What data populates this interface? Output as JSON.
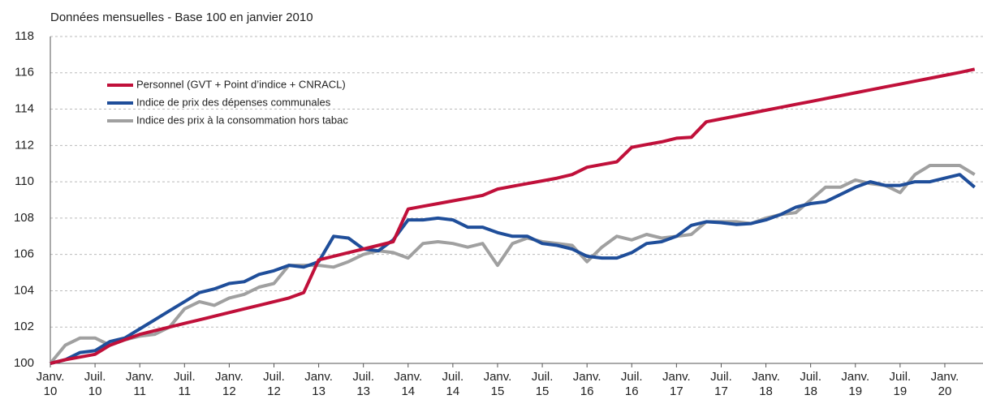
{
  "chart_data": {
    "type": "line",
    "title": "Données mensuelles - Base 100 en janvier 2010",
    "categories": [
      [
        "Janv.",
        "10"
      ],
      null,
      null,
      [
        "Juil.",
        "10"
      ],
      null,
      null,
      [
        "Janv.",
        "11"
      ],
      null,
      null,
      [
        "Juil.",
        "11"
      ],
      null,
      null,
      [
        "Janv.",
        "12"
      ],
      null,
      null,
      [
        "Juil.",
        "12"
      ],
      null,
      null,
      [
        "Janv.",
        "13"
      ],
      null,
      null,
      [
        "Juil.",
        "13"
      ],
      null,
      null,
      [
        "Janv.",
        "14"
      ],
      null,
      null,
      [
        "Juil.",
        "14"
      ],
      null,
      null,
      [
        "Janv.",
        "15"
      ],
      null,
      null,
      [
        "Juil.",
        "15"
      ],
      null,
      null,
      [
        "Janv.",
        "16"
      ],
      null,
      null,
      [
        "Juil.",
        "16"
      ],
      null,
      null,
      [
        "Janv.",
        "17"
      ],
      null,
      null,
      [
        "Juil.",
        "17"
      ],
      null,
      null,
      [
        "Janv.",
        "18"
      ],
      null,
      null,
      [
        "Juil.",
        "18"
      ],
      null,
      null,
      [
        "Janv.",
        "19"
      ],
      null,
      null,
      [
        "Juil.",
        "19"
      ],
      null,
      null,
      [
        "Janv.",
        "20"
      ],
      null,
      null
    ],
    "series": [
      {
        "name": "Personnel (GVT + Point d’indice + CNRACL)",
        "color": "#c0103a",
        "values": [
          100,
          100.2,
          100.35,
          100.5,
          101.0,
          101.3,
          101.6,
          101.8,
          102.0,
          102.2,
          102.4,
          102.6,
          102.8,
          103.0,
          103.2,
          103.4,
          103.6,
          103.9,
          105.7,
          105.9,
          106.1,
          106.3,
          106.5,
          106.7,
          108.5,
          108.65,
          108.8,
          108.95,
          109.1,
          109.25,
          109.6,
          109.75,
          109.9,
          110.05,
          110.2,
          110.4,
          110.8,
          110.95,
          111.1,
          111.9,
          112.05,
          112.2,
          112.4,
          112.45,
          113.3,
          113.46,
          113.62,
          113.78,
          113.94,
          114.1,
          114.26,
          114.42,
          114.58,
          114.74,
          114.9,
          115.06,
          115.22,
          115.38,
          115.54,
          115.7,
          115.86,
          116.02,
          116.2
        ]
      },
      {
        "name": "Indice de prix des dépenses communales",
        "color": "#1f4e9a",
        "values": [
          100,
          100.2,
          100.6,
          100.7,
          101.2,
          101.4,
          101.9,
          102.4,
          102.9,
          103.4,
          103.9,
          104.1,
          104.4,
          104.5,
          104.9,
          105.1,
          105.4,
          105.3,
          105.6,
          107.0,
          106.9,
          106.3,
          106.2,
          106.8,
          107.9,
          107.9,
          108.0,
          107.9,
          107.5,
          107.5,
          107.2,
          107.0,
          107.0,
          106.6,
          106.5,
          106.3,
          105.9,
          105.8,
          105.8,
          106.1,
          106.6,
          106.7,
          107.0,
          107.6,
          107.8,
          107.75,
          107.65,
          107.7,
          107.9,
          108.2,
          108.6,
          108.8,
          108.9,
          109.3,
          109.7,
          110.0,
          109.8,
          109.8,
          110.0,
          110.0,
          110.2,
          110.4,
          109.7
        ]
      },
      {
        "name": "Indice des prix à la consommation hors tabac",
        "color": "#a0a0a0",
        "values": [
          100,
          101.0,
          101.4,
          101.4,
          101.0,
          101.3,
          101.5,
          101.6,
          102.0,
          103.0,
          103.4,
          103.2,
          103.6,
          103.8,
          104.2,
          104.4,
          105.4,
          105.4,
          105.4,
          105.3,
          105.6,
          106.0,
          106.2,
          106.1,
          105.8,
          106.6,
          106.7,
          106.6,
          106.4,
          106.6,
          105.4,
          106.6,
          106.9,
          106.7,
          106.6,
          106.5,
          105.6,
          106.4,
          107.0,
          106.8,
          107.1,
          106.9,
          107.0,
          107.1,
          107.8,
          107.8,
          107.8,
          107.7,
          108.0,
          108.2,
          108.3,
          109.0,
          109.7,
          109.7,
          110.1,
          109.9,
          109.8,
          109.4,
          110.4,
          110.9,
          110.9,
          110.9,
          110.4
        ]
      }
    ],
    "ylim": [
      100,
      118
    ],
    "yticks": [
      100,
      102,
      104,
      106,
      108,
      110,
      112,
      114,
      116,
      118
    ],
    "grid": true,
    "legend": "upper left"
  }
}
